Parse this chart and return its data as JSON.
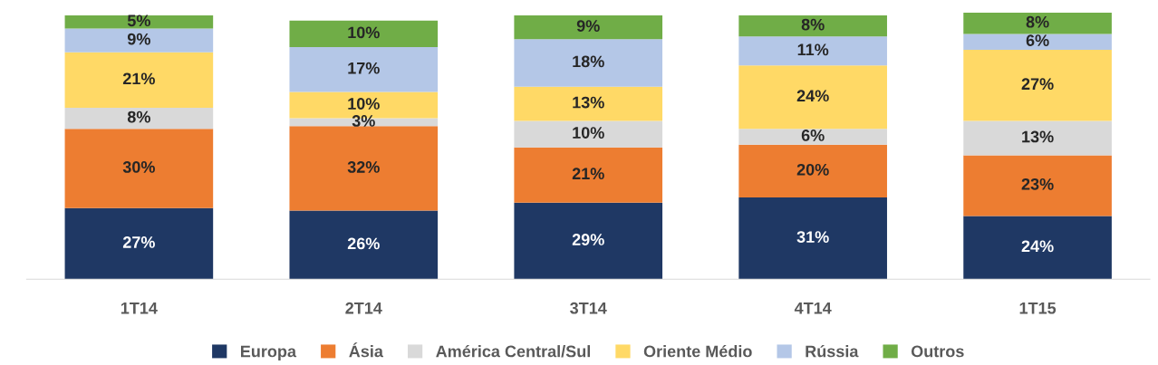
{
  "chart_data": {
    "type": "bar",
    "stacked": true,
    "legend": "bottom",
    "grid": false,
    "categories": [
      "1T14",
      "2T14",
      "3T14",
      "4T14",
      "1T15"
    ],
    "series": [
      {
        "name": "Europa",
        "color": "#1f3864",
        "values": [
          27,
          26,
          29,
          31,
          24
        ],
        "value_labels": [
          "27%",
          "26%",
          "29%",
          "31%",
          "24%"
        ]
      },
      {
        "name": "Ásia",
        "color": "#ed7d31",
        "values": [
          30,
          32,
          21,
          20,
          23
        ],
        "value_labels": [
          "30%",
          "32%",
          "21%",
          "20%",
          "23%"
        ]
      },
      {
        "name": "América Central/Sul",
        "color": "#d9d9d9",
        "values": [
          8,
          3,
          10,
          6,
          13
        ],
        "value_labels": [
          "8%",
          "3%",
          "10%",
          "6%",
          "13%"
        ]
      },
      {
        "name": "Oriente Médio",
        "color": "#ffd966",
        "values": [
          21,
          10,
          13,
          24,
          27
        ],
        "value_labels": [
          "21%",
          "10%",
          "13%",
          "24%",
          "27%"
        ]
      },
      {
        "name": "Rússia",
        "color": "#b4c7e7",
        "values": [
          9,
          17,
          18,
          11,
          6
        ],
        "value_labels": [
          "9%",
          "17%",
          "18%",
          "11%",
          "6%"
        ]
      },
      {
        "name": "Outros",
        "color": "#70ad47",
        "values": [
          5,
          10,
          9,
          8,
          8
        ],
        "value_labels": [
          "5%",
          "10%",
          "9%",
          "8%",
          "8%"
        ]
      }
    ]
  }
}
